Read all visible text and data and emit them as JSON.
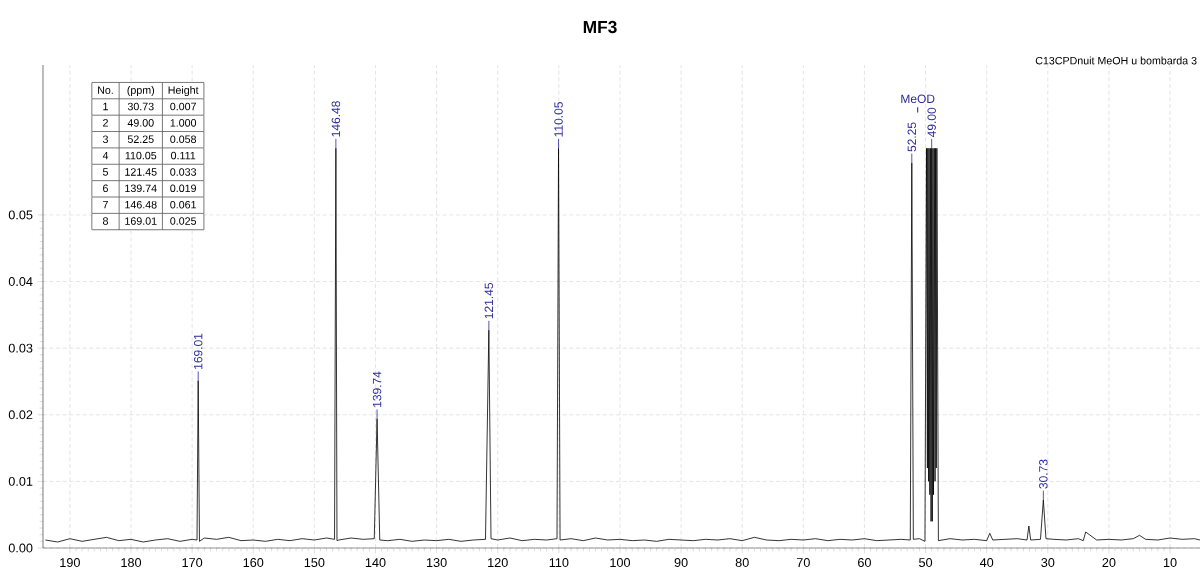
{
  "chart_data": {
    "type": "line",
    "title": "MF3",
    "subtitle": "C13CPDnuit MeOH u bombarda 3",
    "color": "#000000",
    "xlim": [
      194.4,
      5.1
    ],
    "ylim": [
      0,
      0.0725
    ],
    "xticks": [
      190,
      180,
      170,
      160,
      150,
      140,
      130,
      120,
      110,
      100,
      90,
      80,
      70,
      60,
      50,
      40,
      30,
      20,
      10
    ],
    "yticks": [
      {
        "value": 0,
        "label": "0.00"
      },
      {
        "value": 0.01,
        "label": "0.01"
      },
      {
        "value": 0.02,
        "label": "0.02"
      },
      {
        "value": 0.03,
        "label": "0.03"
      },
      {
        "value": 0.04,
        "label": "0.04"
      },
      {
        "value": 0.05,
        "label": "0.05"
      }
    ],
    "grid": true,
    "x": [
      194,
      192,
      190,
      188,
      186,
      184,
      182,
      180,
      178,
      176,
      174,
      172,
      170,
      169.2,
      169.01,
      168.8,
      168,
      166,
      164,
      162,
      160,
      158,
      156,
      154,
      152,
      150,
      148,
      146.7,
      146.48,
      146.3,
      146,
      144,
      142,
      140.2,
      139.74,
      139.3,
      138,
      136,
      134,
      132,
      130,
      128,
      126,
      124,
      122,
      121.45,
      121.1,
      120,
      118,
      116,
      114,
      112,
      110.3,
      110.05,
      109.8,
      108,
      106,
      104,
      102,
      100,
      98,
      96,
      94,
      92,
      90,
      88,
      86,
      84,
      82,
      80,
      78,
      76,
      74,
      72,
      70,
      68,
      66,
      64,
      62,
      60,
      58,
      56,
      54,
      52.5,
      52.25,
      52.0,
      51,
      50.1,
      49.85,
      49.7,
      49.64,
      49.5,
      49.43,
      49.3,
      49.21,
      49.1,
      49.0,
      48.9,
      48.79,
      48.7,
      48.57,
      48.45,
      48.36,
      48.25,
      48.15,
      47.9,
      46,
      44,
      42,
      40,
      39.5,
      39,
      37,
      35,
      33.4,
      33.1,
      32.8,
      31.2,
      30.73,
      30.3,
      29,
      27,
      25,
      24.2,
      23.8,
      22,
      20,
      18,
      16,
      15,
      14,
      12,
      10,
      8,
      6,
      5.1
    ],
    "values": [
      0.0012,
      0.0009,
      0.0014,
      0.001,
      0.0013,
      0.0016,
      0.0011,
      0.0013,
      0.0009,
      0.0012,
      0.0014,
      0.001,
      0.0013,
      0.0012,
      0.0251,
      0.001,
      0.0015,
      0.0013,
      0.0016,
      0.0011,
      0.0012,
      0.001,
      0.0013,
      0.0011,
      0.0014,
      0.0012,
      0.0015,
      0.0013,
      0.06,
      0.0011,
      0.0012,
      0.0015,
      0.0013,
      0.0014,
      0.0194,
      0.0012,
      0.0011,
      0.0013,
      0.001,
      0.0012,
      0.0011,
      0.0013,
      0.001,
      0.0012,
      0.0013,
      0.0327,
      0.0014,
      0.0012,
      0.0015,
      0.0011,
      0.0013,
      0.0012,
      0.0014,
      0.06,
      0.0012,
      0.0014,
      0.0011,
      0.0015,
      0.0012,
      0.0013,
      0.0011,
      0.0012,
      0.001,
      0.0013,
      0.0012,
      0.0011,
      0.0013,
      0.0012,
      0.0014,
      0.0011,
      0.0016,
      0.0012,
      0.0011,
      0.0013,
      0.0012,
      0.0014,
      0.0011,
      0.0013,
      0.0012,
      0.0014,
      0.0011,
      0.0012,
      0.0013,
      0.0012,
      0.0578,
      0.0013,
      0.0014,
      0.001,
      0.06,
      0.012,
      0.06,
      0.01,
      0.06,
      0.008,
      0.06,
      0.004,
      0.06,
      0.004,
      0.06,
      0.008,
      0.06,
      0.01,
      0.06,
      0.012,
      0.06,
      0.0011,
      0.0014,
      0.0012,
      0.0013,
      0.0011,
      0.0022,
      0.0012,
      0.0013,
      0.0014,
      0.0012,
      0.0033,
      0.0012,
      0.0013,
      0.0072,
      0.0014,
      0.0013,
      0.0012,
      0.0014,
      0.0011,
      0.0024,
      0.0012,
      0.0013,
      0.0012,
      0.0014,
      0.0019,
      0.0013,
      0.0012,
      0.0015,
      0.0013,
      0.0014,
      0.0012
    ],
    "annotations": [
      "No.",
      "(ppm)",
      "Height",
      "1",
      "30.73",
      "0.007",
      "2",
      "49.00",
      "1.000",
      "3",
      "52.25",
      "0.058",
      "4",
      "110.05",
      "0.111",
      "5",
      "121.45",
      "0.033",
      "6",
      "139.74",
      "0.019",
      "7",
      "146.48",
      "0.061",
      "8",
      "169.01",
      "0.025",
      {
        "text": "169.01",
        "x": 169.01,
        "y": 0.0251
      },
      {
        "text": "146.48",
        "x": 146.48,
        "y": 0.06
      },
      {
        "text": "139.74",
        "x": 139.74,
        "y": 0.0194
      },
      {
        "text": "121.45",
        "x": 121.45,
        "y": 0.0327
      },
      {
        "text": "110.05",
        "x": 110.05,
        "y": 0.06
      },
      {
        "text": "52.25",
        "x": 52.25,
        "y": 0.0578
      },
      {
        "text": "49.00",
        "x": 49.0,
        "y": 0.06
      },
      "MeOD",
      {
        "text": "30.73",
        "x": 30.73,
        "y": 0.0072
      }
    ]
  }
}
